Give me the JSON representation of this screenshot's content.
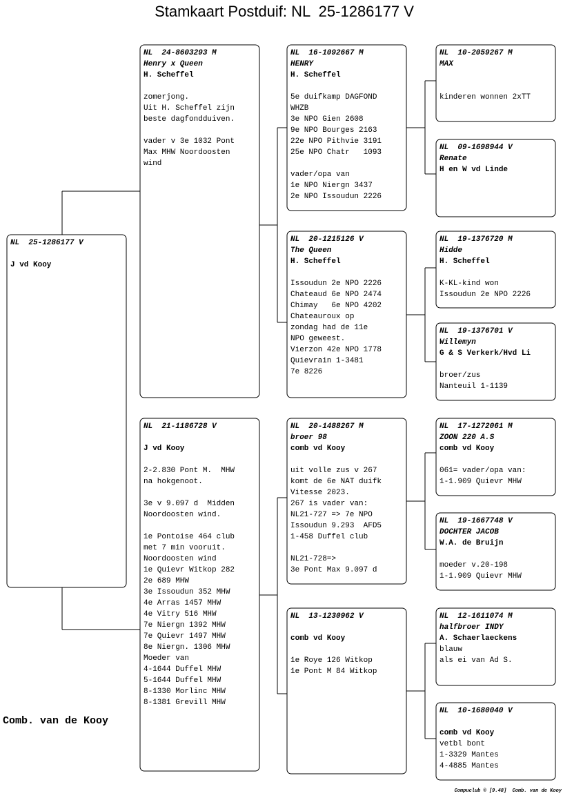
{
  "header": {
    "title": "Stamkaart Postduif: NL  25-1286177 V"
  },
  "pedigree": [
    {
      "id": "NL  25-1286177 V",
      "owner": "J vd Kooy"
    },
    {
      "id": "NL  24-8603293 M",
      "name": "Henry x Queen",
      "owner": "H. Scheffel",
      "notes": [
        [
          "zomerjong.",
          "Uit H. Scheffel zijn",
          "beste dagfondduiven."
        ],
        [
          "vader v 3e 1032 Pont",
          "Max MHW Noordoosten",
          "wind"
        ]
      ]
    },
    {
      "id": "NL  21-1186728 V",
      "owner": "J vd Kooy",
      "notes": [
        [
          "2-2.830 Pont M.  MHW",
          "na hokgenoot."
        ],
        [
          "3e v 9.097 d  Midden",
          "Noordoosten wind."
        ],
        [
          "1e Pontoise 464 club",
          "met 7 min vooruit.",
          "Noordoosten wind",
          "1e Quievr Witkop 282",
          "2e 689 MHW",
          "3e Issoudun 352 MHW",
          "4e Arras 1457 MHW",
          "4e Vitry 516 MHW",
          "7e Niergn 1392 MHW",
          "7e Quievr 1497 MHW",
          "8e Niergn. 1306 MHW",
          "Moeder van",
          "4-1644 Duffel MHW",
          "5-1644 Duffel MHW",
          "8-1330 Morlinc MHW",
          "8-1381 Grevill MHW"
        ]
      ]
    },
    {
      "id": "NL  16-1092667 M",
      "name": "HENRY",
      "owner": "H. Scheffel",
      "notes": [
        [
          "5e duifkamp DAGFOND",
          "WHZB",
          "3e NPO Gien 2608",
          "9e NPO Bourges 2163",
          "22e NPO Pithvie 3191",
          "25e NPO Chatr   1093"
        ],
        [
          "vader/opa van",
          "1e NPO Niergn 3437",
          "2e NPO Issoudun 2226"
        ]
      ]
    },
    {
      "id": "NL  20-1215126 V",
      "name": "The Queen",
      "owner": "H. Scheffel",
      "notes": [
        [
          "Issoudun 2e NPO 2226",
          "Chateaud 6e NPO 2474",
          "Chimay   6e NPO 4202",
          "Chateauroux op",
          "zondag had de 11e",
          "NPO geweest.",
          "Vierzon 42e NPO 1778",
          "Quievrain 1-3481",
          "7e 8226"
        ]
      ]
    },
    {
      "id": "NL  20-1488267 M",
      "name": "broer 98",
      "owner": "comb vd Kooy",
      "notes": [
        [
          "uit volle zus v 267",
          "komt de 6e NAT duifk",
          "Vitesse 2023.",
          "267 is vader van:",
          "NL21-727 => 7e NPO",
          "Issoudun 9.293  AFD5",
          "1-458 Duffel club"
        ],
        [
          "NL21-728=>",
          "3e Pont Max 9.097 d"
        ]
      ]
    },
    {
      "id": "NL  13-1230962 V",
      "owner": "comb vd Kooy",
      "notes": [
        [
          "1e Roye 126 Witkop",
          "1e Pont M 84 Witkop"
        ]
      ]
    },
    {
      "id": "NL  10-2059267 M",
      "name": "MAX",
      "notes": [
        [
          "kinderen wonnen 2xTT"
        ]
      ]
    },
    {
      "id": "NL  09-1698944 V",
      "name": "Renate",
      "owner": "H en W vd Linde"
    },
    {
      "id": "NL  19-1376720 M",
      "name": "Hidde",
      "owner": "H. Scheffel",
      "notes": [
        [
          "K-KL-kind won",
          "Issoudun 2e NPO 2226"
        ]
      ]
    },
    {
      "id": "NL  19-1376701 V",
      "name": "Willemyn",
      "owner": "G & S Verkerk/Hvd Li",
      "notes": [
        [
          "broer/zus",
          "Nanteuil 1-1139"
        ]
      ]
    },
    {
      "id": "NL  17-1272061 M",
      "name": "ZOON 220 A.S",
      "owner": "comb vd Kooy",
      "notes": [
        [
          "061= vader/opa van:",
          "1-1.909 Quievr MHW"
        ]
      ]
    },
    {
      "id": "NL  19-1667748 V",
      "name": "DOCHTER JACOB",
      "owner": "W.A. de Bruijn",
      "notes": [
        [
          "moeder v.20-198",
          "1-1.909 Quievr MHW"
        ]
      ]
    },
    {
      "id": "NL  12-1611074 M",
      "name": "halfbroer INDY",
      "owner": "A. Schaerlaeckens",
      "notes": [
        [
          "blauw",
          "als ei van Ad S."
        ]
      ]
    },
    {
      "id": "NL  10-1680040 V",
      "owner": "comb vd Kooy",
      "notes": [
        [
          "vetbl bont",
          "1-3329 Mantes",
          "4-4885 Mantes"
        ]
      ]
    }
  ],
  "breeder": "Comb. van de Kooy",
  "footer": "Compuclub © [9.48]  Comb. van de Kooy"
}
